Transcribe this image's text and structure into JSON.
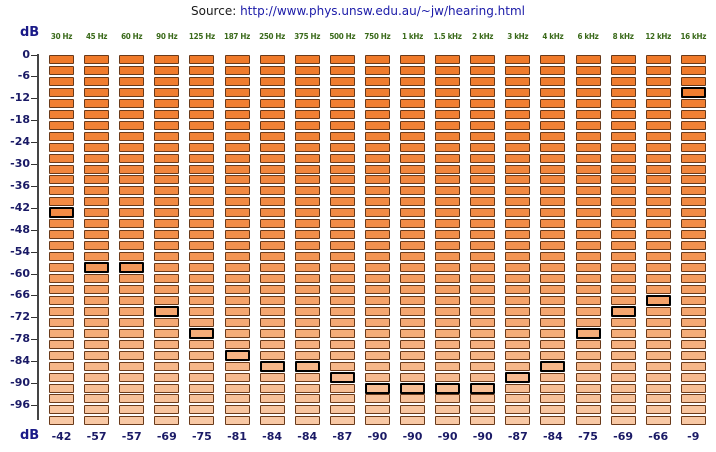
{
  "source": {
    "prefix": "Source: ",
    "url": "http://www.phys.unsw.edu.au/~jw/hearing.html"
  },
  "db_label_top": "dB",
  "db_label_bottom": "dB",
  "frequencies": [
    "30 Hz",
    "45 Hz",
    "60 Hz",
    "90 Hz",
    "125 Hz",
    "187 Hz",
    "250 Hz",
    "375 Hz",
    "500 Hz",
    "750 Hz",
    "1 kHz",
    "1.5 kHz",
    "2 kHz",
    "3 kHz",
    "4 kHz",
    "6 kHz",
    "8 kHz",
    "12 kHz",
    "16 kHz"
  ],
  "y_ticks": [
    "0",
    "-6",
    "-12",
    "-18",
    "-24",
    "-30",
    "-36",
    "-42",
    "-48",
    "-54",
    "-60",
    "-66",
    "-72",
    "-78",
    "-84",
    "-90",
    "-96"
  ],
  "thresholds": [
    -42,
    -57,
    -57,
    -69,
    -75,
    -81,
    -84,
    -84,
    -87,
    -90,
    -90,
    -90,
    -90,
    -87,
    -84,
    -75,
    -69,
    -66,
    -9
  ],
  "threshold_labels": [
    "-42",
    "-57",
    "-57",
    "-69",
    "-75",
    "-81",
    "-84",
    "-84",
    "-87",
    "-90",
    "-90",
    "-90",
    "-90",
    "-87",
    "-84",
    "-75",
    "-69",
    "-66",
    "-9"
  ],
  "colors": {
    "cell_dark": "#f07a2a",
    "cell_light": "#f8c8a4",
    "marker_border": "#000000"
  }
}
